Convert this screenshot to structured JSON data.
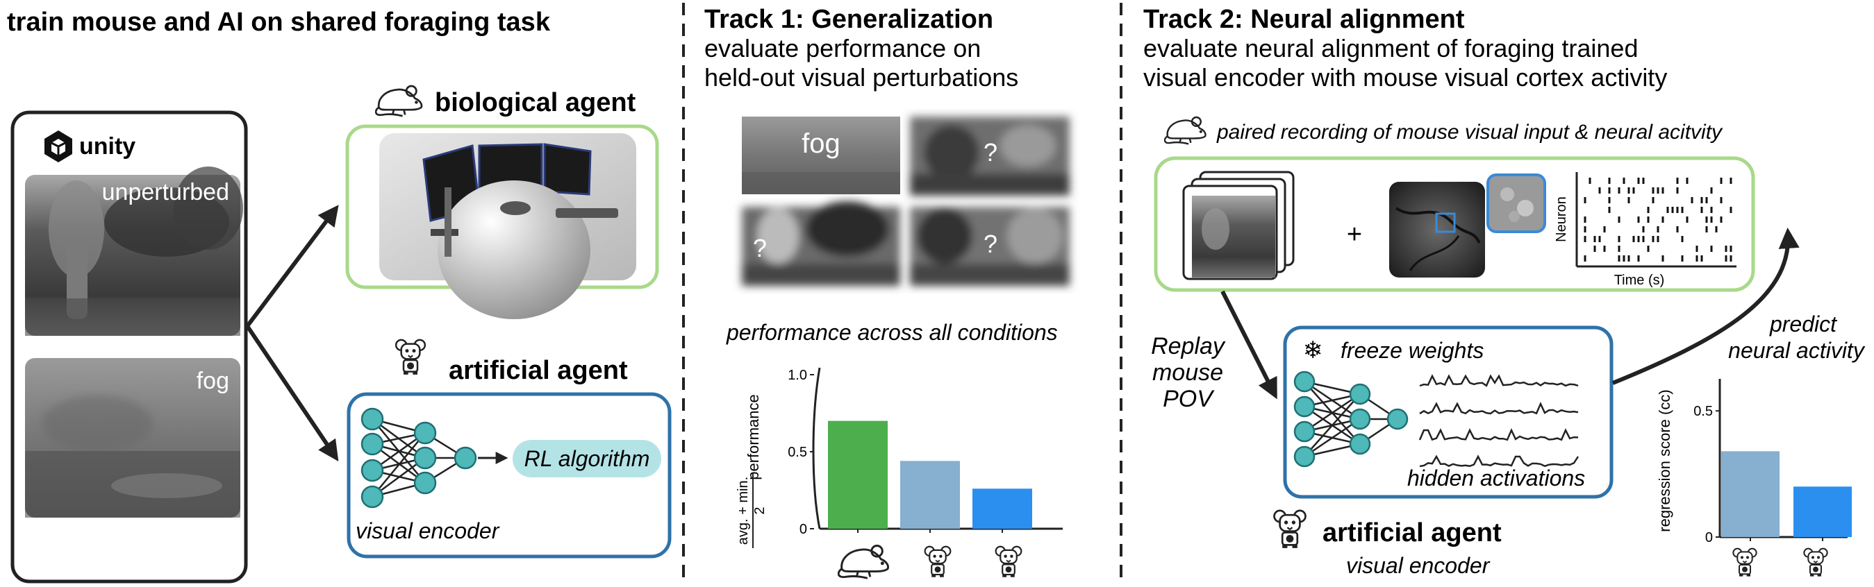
{
  "panel_left": {
    "title": "train mouse and AI on shared foraging task",
    "engine_label": "unity",
    "scene_unperturbed": "unperturbed",
    "scene_fog": "fog",
    "bio_agent_label": "biological agent",
    "art_agent_label": "artificial agent",
    "rl_label": "RL algorithm",
    "encoder_label": "visual encoder"
  },
  "track1": {
    "title": "Track 1: Generalization",
    "subtitle_line1": "evaluate performance on",
    "subtitle_line2": "held-out visual perturbations",
    "tile_fog": "fog",
    "tile_unknown": "?",
    "perf_caption": "performance across all conditions"
  },
  "track2": {
    "title": "Track 2: Neural alignment",
    "subtitle_line1": "evaluate neural alignment of foraging trained",
    "subtitle_line2": "visual encoder with mouse visual cortex activity",
    "recording_label": "paired recording of mouse visual input & neural acitvity",
    "plus": "+",
    "raster_ylabel": "Neuron",
    "raster_xlabel": "Time (s)",
    "replay_line1": "Replay",
    "replay_line2": "mouse",
    "replay_line3": "POV",
    "freeze_icon": "❄",
    "freeze_label": "freeze weights",
    "hidden_label": "hidden activations",
    "predict_line1": "predict",
    "predict_line2": "neural activity",
    "agent_label": "artificial agent",
    "agent_sub": "visual encoder"
  },
  "colors": {
    "green": "#4cae4c",
    "light_blue": "#86afd0",
    "blue": "#2b8ff0",
    "bio_box": "#a8d98a",
    "art_box": "#2f72a8",
    "node_fill": "#4fb8b8",
    "rl_fill": "#b4e3e6"
  },
  "chart_data": [
    {
      "type": "bar",
      "ylabel_line1": "performance",
      "ylabel_line2": "avg. + min.",
      "ylabel_line3": "2",
      "yticks": [
        "0",
        "0.5",
        "1.0"
      ],
      "ylim": [
        0,
        1.0
      ],
      "categories": [
        "mouse",
        "artificial agent A",
        "artificial agent B"
      ],
      "category_icons": [
        "mouse-icon",
        "robot-mouse-icon",
        "robot-mouse-icon"
      ],
      "values": [
        0.7,
        0.44,
        0.26
      ],
      "colors": [
        "#4cae4c",
        "#86afd0",
        "#2b8ff0"
      ]
    },
    {
      "type": "bar",
      "ylabel": "regression score (cc)",
      "yticks": [
        "0",
        "0.5"
      ],
      "ylim": [
        0,
        0.55
      ],
      "categories": [
        "artificial agent A",
        "artificial agent B"
      ],
      "category_icons": [
        "robot-mouse-icon",
        "robot-mouse-icon"
      ],
      "values": [
        0.34,
        0.2
      ],
      "colors": [
        "#86afd0",
        "#2b8ff0"
      ]
    }
  ]
}
